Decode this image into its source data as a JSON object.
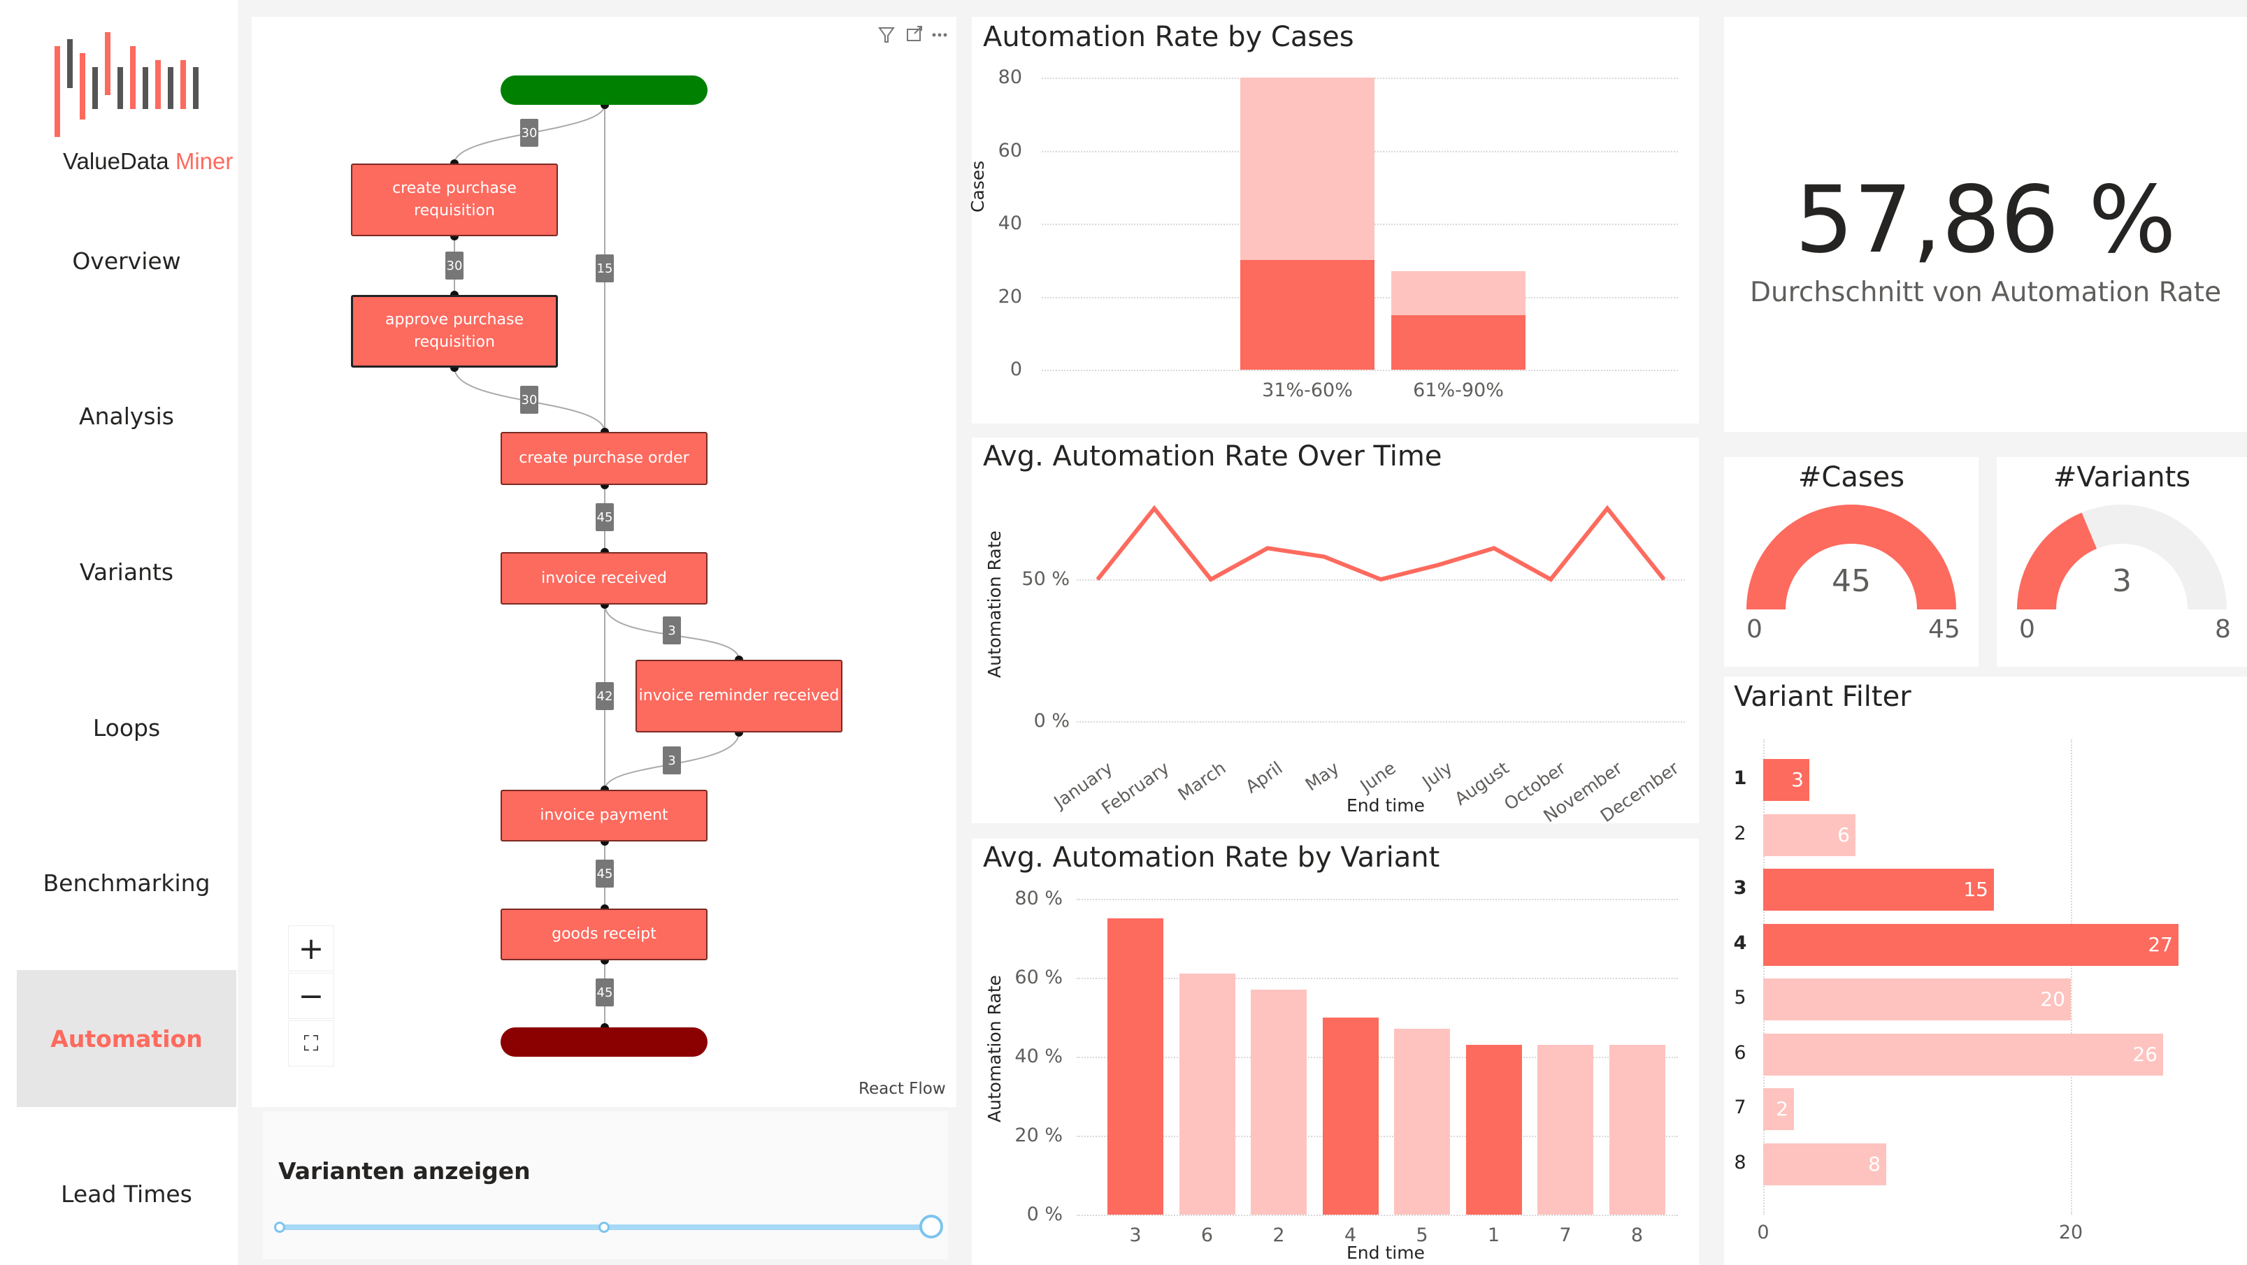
{
  "sidebar": {
    "logo": {
      "part1": "ValueData",
      "part2": "Miner"
    },
    "items": [
      {
        "label": "Overview",
        "active": false
      },
      {
        "label": "Analysis",
        "active": false
      },
      {
        "label": "Variants",
        "active": false
      },
      {
        "label": "Loops",
        "active": false
      },
      {
        "label": "Benchmarking",
        "active": false
      },
      {
        "label": "Automation",
        "active": true
      },
      {
        "label": "Lead Times",
        "active": false
      }
    ]
  },
  "flow": {
    "nodes": {
      "create_pr": "create purchase requisition",
      "approve_pr": "approve purchase requisition",
      "create_po": "create purchase order",
      "invoice_received": "invoice received",
      "invoice_reminder": "invoice reminder received",
      "invoice_payment": "invoice payment",
      "goods_receipt": "goods receipt"
    },
    "edges": {
      "start_to_cpr": "30",
      "start_to_cpo": "15",
      "cpr_to_apr": "30",
      "apr_to_cpo": "30",
      "cpo_to_ir": "45",
      "ir_to_rem": "3",
      "ir_to_pay": "42",
      "rem_to_pay": "3",
      "pay_to_gr": "45",
      "gr_to_end": "45"
    },
    "controls": {
      "zoom_in": "+",
      "zoom_out": "−",
      "fit": "⛶"
    },
    "attribution": "React Flow"
  },
  "variant_slider": {
    "title": "Varianten anzeigen",
    "value": 1.0
  },
  "colors": {
    "primary": "#fd6a5e",
    "light": "#fec3bf",
    "start": "#008000",
    "end": "#8b0000",
    "gauge_bg": "#f0f0f0"
  },
  "kpi": {
    "value": "57,86 %",
    "label": "Durchschnitt von Automation Rate"
  },
  "gauges": [
    {
      "title": "#Cases",
      "value": "45",
      "min": "0",
      "max": "45",
      "fraction": 1.0
    },
    {
      "title": "#Variants",
      "value": "3",
      "min": "0",
      "max": "8",
      "fraction": 0.375
    }
  ],
  "charts": {
    "by_cases": {
      "title": "Automation Rate by Cases",
      "ylabel": "Cases",
      "yticks": [
        "0",
        "20",
        "40",
        "60",
        "80"
      ]
    },
    "over_time": {
      "title": "Avg. Automation Rate Over Time",
      "ylabel": "Automation Rate",
      "xlabel": "End time",
      "yticks": [
        "0 %",
        "50 %"
      ]
    },
    "by_variant": {
      "title": "Avg. Automation Rate by Variant",
      "ylabel": "Automation Rate",
      "xlabel": "End time",
      "yticks": [
        "0 %",
        "20 %",
        "40 %",
        "60 %",
        "80 %"
      ]
    },
    "variant_filter": {
      "title": "Variant Filter",
      "xticks": [
        "0",
        "20"
      ]
    }
  },
  "chart_data": [
    {
      "type": "bar",
      "title": "Automation Rate by Cases",
      "ylabel": "Cases",
      "ylim": [
        0,
        80
      ],
      "categories": [
        "31%-60%",
        "61%-90%"
      ],
      "series": [
        {
          "values": [
            30,
            15
          ]
        },
        {
          "values": [
            50,
            12
          ]
        }
      ],
      "stacked": true
    },
    {
      "type": "line",
      "title": "Avg. Automation Rate Over Time",
      "xlabel": "End time",
      "ylabel": "Automation Rate",
      "ylim": [
        0,
        100
      ],
      "x": [
        "January",
        "February",
        "March",
        "April",
        "May",
        "June",
        "July",
        "August",
        "October",
        "November",
        "December"
      ],
      "y": [
        50,
        75,
        50,
        61,
        58,
        50,
        55,
        61,
        50,
        75,
        50
      ]
    },
    {
      "type": "bar",
      "title": "Avg. Automation Rate by Variant",
      "xlabel": "End time",
      "ylabel": "Automation Rate",
      "ylim": [
        0,
        85
      ],
      "categories": [
        "3",
        "6",
        "2",
        "4",
        "5",
        "1",
        "7",
        "8"
      ],
      "values": [
        75,
        61,
        57,
        50,
        47,
        43,
        43,
        43
      ],
      "highlighted": [
        "3",
        "4",
        "1"
      ]
    },
    {
      "type": "bar",
      "orientation": "horizontal",
      "title": "Variant Filter",
      "xlim": [
        0,
        30
      ],
      "categories": [
        "1",
        "2",
        "3",
        "4",
        "5",
        "6",
        "7",
        "8"
      ],
      "values": [
        3,
        6,
        15,
        27,
        20,
        26,
        2,
        8
      ],
      "highlighted": [
        "1",
        "3",
        "4"
      ]
    }
  ]
}
